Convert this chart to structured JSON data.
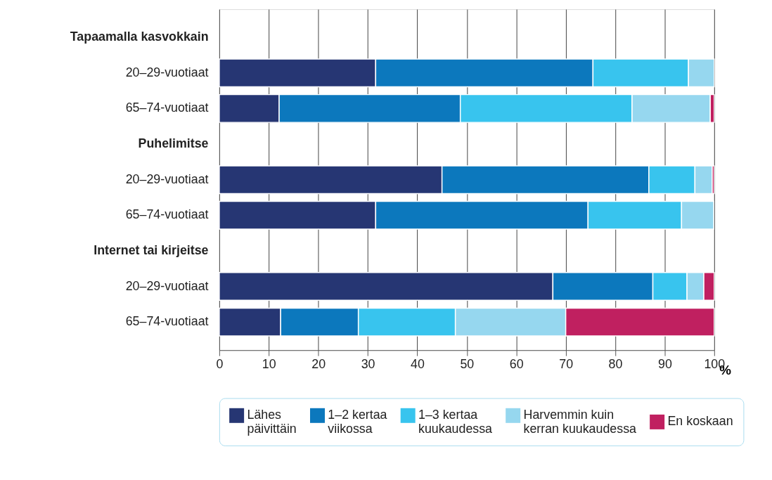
{
  "chart_data": {
    "type": "bar",
    "orientation": "horizontal",
    "stacked": true,
    "categories": [
      "Tapaamalla kasvokkain",
      "20–29-vuotiaat",
      "65–74-vuotiaat",
      "Puhelimitse",
      "20–29-vuotiaat",
      "65–74-vuotiaat",
      "Internet tai kirjeitse",
      "20–29-vuotiaat",
      "65–74-vuotiaat"
    ],
    "series": [
      {
        "name": "Lähes päivittäin",
        "color": "#263673",
        "values": [
          null,
          31.6,
          12.1,
          null,
          45.0,
          31.6,
          null,
          67.4,
          12.4
        ]
      },
      {
        "name": "1–2 kertaa viikossa",
        "color": "#0c78bd",
        "values": [
          null,
          43.9,
          36.6,
          null,
          41.8,
          42.9,
          null,
          20.2,
          15.7
        ]
      },
      {
        "name": "1–3 kertaa kuukaudessa",
        "color": "#38c4ee",
        "values": [
          null,
          19.3,
          34.7,
          null,
          9.3,
          18.9,
          null,
          6.9,
          19.6
        ]
      },
      {
        "name": "Harvemmin kuin kerran kuukaudessa",
        "color": "#96d7ef",
        "values": [
          null,
          5.2,
          15.8,
          null,
          3.5,
          6.5,
          null,
          3.4,
          22.3
        ]
      },
      {
        "name": "En koskaan",
        "color": "#c02060",
        "values": [
          null,
          null,
          0.8,
          null,
          0.4,
          null,
          null,
          2.1,
          30.0
        ]
      }
    ],
    "xlim": [
      0,
      100
    ],
    "xticks": [
      0,
      10,
      20,
      30,
      40,
      50,
      60,
      70,
      80,
      90,
      100
    ],
    "xlabel": "%",
    "grid": "x",
    "legend": "bottom"
  }
}
